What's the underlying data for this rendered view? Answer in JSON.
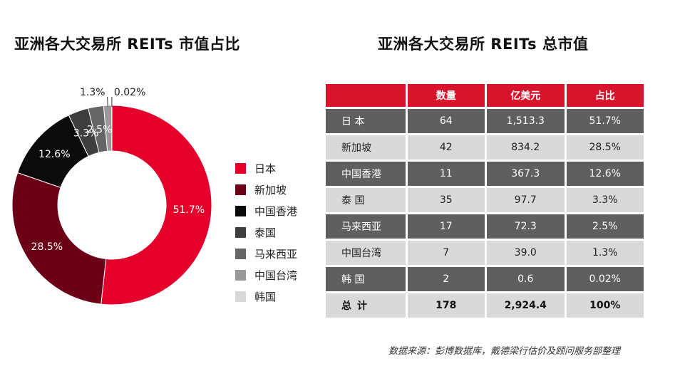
{
  "titles": {
    "left": "亚洲各大交易所 REITs 市值占比",
    "right": "亚洲各大交易所 REITs 总市值"
  },
  "chart_data": [
    {
      "type": "pie",
      "title": "亚洲各大交易所 REITs 市值占比",
      "slices": [
        {
          "label": "日本",
          "value": 51.7,
          "value_label": "51.7%",
          "color": "#e5002b"
        },
        {
          "label": "新加坡",
          "value": 28.5,
          "value_label": "28.5%",
          "color": "#6b0016"
        },
        {
          "label": "中国香港",
          "value": 12.6,
          "value_label": "12.6%",
          "color": "#0b0b0b"
        },
        {
          "label": "泰国",
          "value": 3.3,
          "value_label": "3.3%",
          "color": "#3e3e3e"
        },
        {
          "label": "马来西亚",
          "value": 2.5,
          "value_label": "2.5%",
          "color": "#666666"
        },
        {
          "label": "中国台湾",
          "value": 1.3,
          "value_label": "1.3%",
          "color": "#999999"
        },
        {
          "label": "韩国",
          "value": 0.02,
          "value_label": "0.02%",
          "color": "#d9d9d9"
        }
      ],
      "legend_position": "right"
    },
    {
      "type": "table",
      "title": "亚洲各大交易所 REITs 总市值",
      "columns": [
        "",
        "数量",
        "亿美元",
        "占比"
      ],
      "rows": [
        {
          "region": "日 本",
          "count": "64",
          "usd": "1,513.3",
          "share": "51.7%"
        },
        {
          "region": "新加坡",
          "count": "42",
          "usd": "834.2",
          "share": "28.5%"
        },
        {
          "region": "中国香港",
          "count": "11",
          "usd": "367.3",
          "share": "12.6%"
        },
        {
          "region": "泰 国",
          "count": "35",
          "usd": "97.7",
          "share": "3.3%"
        },
        {
          "region": "马来西亚",
          "count": "17",
          "usd": "72.3",
          "share": "2.5%"
        },
        {
          "region": "中国台湾",
          "count": "7",
          "usd": "39.0",
          "share": "1.3%"
        },
        {
          "region": "韩 国",
          "count": "2",
          "usd": "0.6",
          "share": "0.02%"
        }
      ],
      "total": {
        "region": "总计",
        "count": "178",
        "usd": "2,924.4",
        "share": "100%"
      }
    }
  ],
  "source": "数据来源：彭博数据库，戴德梁行估价及顾问服务部整理"
}
